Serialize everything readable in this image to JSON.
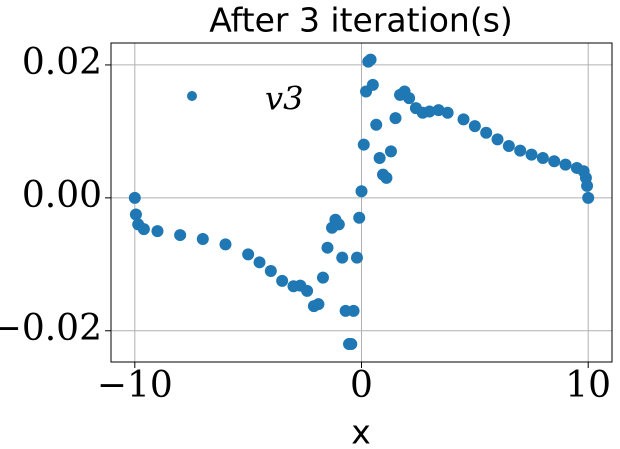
{
  "chart_data": {
    "type": "scatter",
    "title": "After 3 iteration(s)",
    "x_label": "x",
    "xlim": [
      -11.05,
      11.05
    ],
    "ylim": [
      -0.0247,
      0.0233
    ],
    "xticks": [
      {
        "value": -10,
        "label": "−10"
      },
      0,
      10
    ],
    "yticks": [
      {
        "value": -0.02,
        "label": "−0.02"
      },
      {
        "value": 0,
        "label": "0.00"
      },
      0.02
    ],
    "grid": true,
    "legend_position": "upper left",
    "series": [
      {
        "name": "v3",
        "color": "#1f77b4",
        "x": [
          -10,
          -9.95,
          -9.85,
          -9.6,
          -9,
          -8,
          -7,
          -6,
          -5,
          -4.5,
          -4,
          -3.5,
          -3,
          -2.7,
          -2.4,
          -2.1,
          -1.9,
          -1.7,
          -1.5,
          -1.3,
          -1.15,
          -1.0,
          -0.85,
          -0.7,
          -0.55,
          -0.45,
          -0.35,
          -0.2,
          -0.1,
          0,
          0.1,
          0.2,
          0.3,
          0.4,
          0.5,
          0.65,
          0.8,
          0.95,
          1.1,
          1.3,
          1.5,
          1.7,
          1.9,
          2.1,
          2.4,
          2.7,
          3.0,
          3.4,
          3.8,
          4.5,
          5,
          5.5,
          6,
          6.5,
          7,
          7.5,
          8,
          8.5,
          9,
          9.5,
          9.8,
          9.9,
          9.95,
          10
        ],
        "values": [
          0,
          -0.0025,
          -0.004,
          -0.0047,
          -0.005,
          -0.0056,
          -0.0062,
          -0.007,
          -0.0085,
          -0.0097,
          -0.011,
          -0.0125,
          -0.0133,
          -0.0132,
          -0.014,
          -0.0163,
          -0.016,
          -0.012,
          -0.0075,
          -0.0045,
          -0.0033,
          -0.004,
          -0.009,
          -0.017,
          -0.022,
          -0.022,
          -0.017,
          -0.009,
          -0.003,
          0.001,
          0.008,
          0.016,
          0.0205,
          0.0208,
          0.017,
          0.011,
          0.006,
          0.0035,
          0.003,
          0.007,
          0.012,
          0.0155,
          0.016,
          0.015,
          0.0135,
          0.0128,
          0.013,
          0.0132,
          0.0128,
          0.0118,
          0.0108,
          0.0098,
          0.0088,
          0.0078,
          0.0071,
          0.0065,
          0.006,
          0.0055,
          0.005,
          0.0045,
          0.004,
          0.003,
          0.0018,
          0
        ]
      }
    ]
  }
}
